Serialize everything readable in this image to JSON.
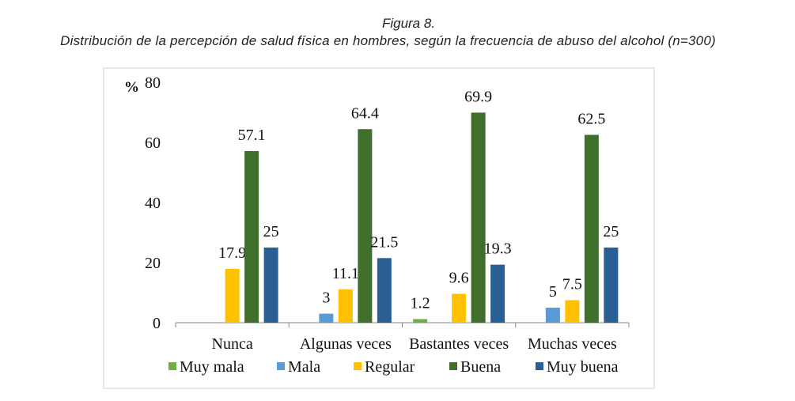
{
  "figure_label": "Figura 8.",
  "chart_data": {
    "type": "bar",
    "title": "Distribución de la percepción de salud física en hombres, según la frecuencia de abuso del alcohol (n=300)",
    "ylabel": "%",
    "ylim": [
      0,
      80
    ],
    "yticks": [
      0,
      20,
      40,
      60,
      80
    ],
    "grid": false,
    "legend_position": "bottom",
    "categories": [
      "Nunca",
      "Algunas veces",
      "Bastantes veces",
      "Muchas veces"
    ],
    "series": [
      {
        "name": "Muy mala",
        "color": "#70ad47",
        "values": [
          null,
          null,
          1.2,
          null
        ]
      },
      {
        "name": "Mala",
        "color": "#5b9bd5",
        "values": [
          null,
          3,
          null,
          5
        ]
      },
      {
        "name": "Regular",
        "color": "#ffc000",
        "values": [
          17.9,
          11.1,
          9.6,
          7.5
        ]
      },
      {
        "name": "Buena",
        "color": "#3f6f2a",
        "values": [
          57.1,
          64.4,
          69.9,
          62.5
        ]
      },
      {
        "name": "Muy buena",
        "color": "#2a5f96",
        "values": [
          25,
          21.5,
          19.3,
          25
        ]
      }
    ]
  }
}
